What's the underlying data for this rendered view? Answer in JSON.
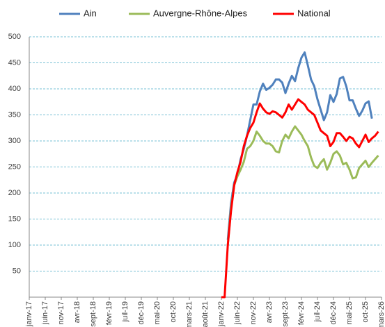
{
  "chart_data": {
    "type": "line",
    "categories": [
      "janv-17",
      null,
      null,
      null,
      null,
      "juin-17",
      null,
      null,
      null,
      null,
      "nov-17",
      null,
      null,
      null,
      null,
      "avr-18",
      null,
      null,
      null,
      null,
      "sept-18",
      null,
      null,
      null,
      null,
      "févr-19",
      null,
      null,
      null,
      null,
      "juil-19",
      null,
      null,
      null,
      null,
      "déc-19",
      null,
      null,
      null,
      null,
      "mai-20",
      null,
      null,
      null,
      null,
      "oct-20",
      null,
      null,
      null,
      null,
      "mars-21",
      null,
      null,
      null,
      null,
      "août-21",
      null,
      null,
      null,
      null,
      "janv-22",
      null,
      null,
      null,
      null,
      "juin-22",
      null,
      null,
      null,
      null,
      "nov-22",
      null,
      null,
      null,
      null,
      "avr-23",
      null,
      null,
      null,
      null,
      "sept-23",
      null,
      null,
      null,
      null,
      "févr-24",
      null,
      null,
      null,
      null,
      "juil-24",
      null,
      null,
      null,
      null,
      "déc-24",
      null,
      null,
      null,
      null,
      "mai-25",
      null,
      null,
      null,
      null,
      "oct-25",
      null,
      null,
      null,
      null,
      "mars-26"
    ],
    "series": [
      {
        "name": "Ain",
        "color": "#4f81bd",
        "values": [
          null,
          null,
          null,
          null,
          null,
          null,
          null,
          null,
          null,
          null,
          null,
          null,
          null,
          null,
          null,
          null,
          null,
          null,
          null,
          null,
          null,
          null,
          null,
          null,
          null,
          null,
          null,
          null,
          null,
          null,
          null,
          null,
          null,
          null,
          null,
          null,
          null,
          null,
          null,
          null,
          null,
          null,
          null,
          null,
          null,
          null,
          null,
          null,
          null,
          null,
          null,
          null,
          null,
          null,
          null,
          null,
          null,
          null,
          null,
          null,
          null,
          null,
          110,
          180,
          220,
          235,
          265,
          285,
          310,
          340,
          370,
          370,
          395,
          410,
          398,
          402,
          408,
          418,
          418,
          412,
          392,
          410,
          425,
          415,
          440,
          460,
          470,
          445,
          418,
          405,
          380,
          360,
          340,
          355,
          388,
          375,
          390,
          420,
          423,
          405,
          378,
          378,
          362,
          348,
          358,
          372,
          376,
          343,
          null,
          null,
          null
        ]
      },
      {
        "name": "Auvergne-Rhône-Alpes",
        "color": "#9bbb59",
        "values": [
          null,
          null,
          null,
          null,
          null,
          null,
          null,
          null,
          null,
          null,
          null,
          null,
          null,
          null,
          null,
          null,
          null,
          null,
          null,
          null,
          null,
          null,
          null,
          null,
          null,
          null,
          null,
          null,
          null,
          null,
          null,
          null,
          null,
          null,
          null,
          null,
          null,
          null,
          null,
          null,
          null,
          null,
          null,
          null,
          null,
          null,
          null,
          null,
          null,
          null,
          null,
          null,
          null,
          null,
          null,
          null,
          null,
          null,
          null,
          null,
          null,
          null,
          100,
          170,
          215,
          232,
          245,
          260,
          285,
          290,
          300,
          318,
          310,
          300,
          295,
          295,
          290,
          280,
          278,
          300,
          312,
          305,
          318,
          328,
          320,
          312,
          300,
          290,
          268,
          252,
          248,
          258,
          265,
          245,
          258,
          275,
          280,
          272,
          255,
          258,
          245,
          228,
          230,
          248,
          255,
          262,
          250,
          258,
          265,
          272,
          null
        ]
      },
      {
        "name": "National",
        "color": "#ff0000",
        "values": [
          null,
          null,
          null,
          null,
          null,
          null,
          null,
          null,
          null,
          null,
          null,
          null,
          null,
          null,
          null,
          null,
          null,
          null,
          null,
          null,
          null,
          null,
          null,
          null,
          null,
          null,
          null,
          null,
          null,
          null,
          null,
          null,
          null,
          null,
          null,
          null,
          null,
          null,
          null,
          null,
          null,
          null,
          null,
          null,
          null,
          null,
          null,
          null,
          null,
          null,
          null,
          null,
          null,
          null,
          null,
          null,
          null,
          null,
          null,
          null,
          0,
          0,
          100,
          165,
          215,
          240,
          260,
          290,
          310,
          325,
          335,
          355,
          372,
          362,
          355,
          352,
          357,
          355,
          350,
          345,
          355,
          370,
          360,
          370,
          380,
          375,
          370,
          360,
          355,
          350,
          335,
          320,
          315,
          310,
          290,
          298,
          315,
          315,
          308,
          300,
          308,
          305,
          295,
          288,
          300,
          312,
          298,
          305,
          310,
          318,
          null
        ]
      }
    ],
    "ylim": [
      0,
      500
    ],
    "yticks": [
      50,
      100,
      150,
      200,
      250,
      300,
      350,
      400,
      450,
      500
    ],
    "grid": true,
    "legend": "top"
  }
}
